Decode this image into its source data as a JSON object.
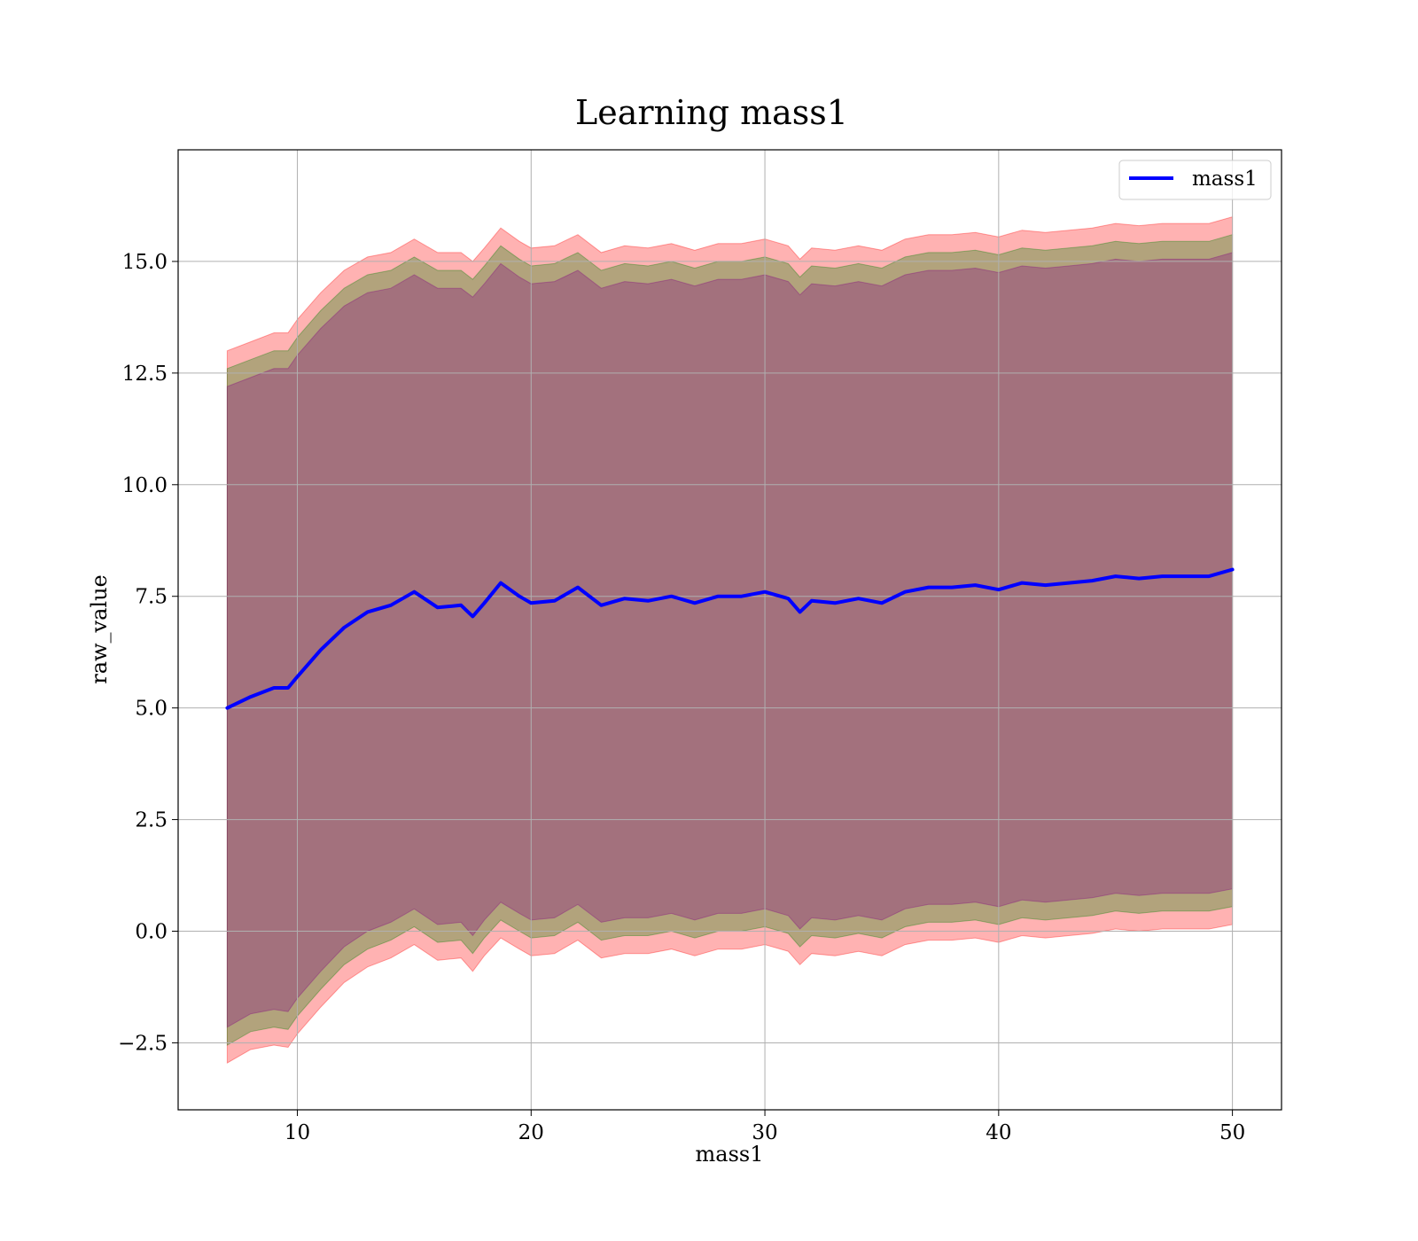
{
  "chart_data": {
    "type": "line",
    "title": "Learning mass1",
    "xlabel": "mass1",
    "ylabel": "raw_value",
    "xlim": [
      4.9,
      52.1
    ],
    "ylim": [
      -4.0,
      17.5
    ],
    "grid": true,
    "legend_position": "top-right",
    "xticks": [
      10,
      20,
      30,
      40,
      50
    ],
    "xtick_labels": [
      "10",
      "20",
      "30",
      "40",
      "50"
    ],
    "yticks": [
      -2.5,
      0.0,
      2.5,
      5.0,
      7.5,
      10.0,
      12.5,
      15.0
    ],
    "ytick_labels": [
      "−2.5",
      "0.0",
      "2.5",
      "5.0",
      "7.5",
      "10.0",
      "12.5",
      "15.0"
    ],
    "x": [
      7.0,
      8.0,
      9.0,
      9.6,
      10.0,
      11.0,
      12.0,
      13.0,
      14.0,
      15.0,
      16.0,
      17.0,
      17.5,
      18.0,
      18.7,
      19.5,
      20.0,
      21.0,
      22.0,
      23.0,
      24.0,
      25.0,
      26.0,
      27.0,
      28.0,
      29.0,
      30.0,
      31.0,
      31.5,
      32.0,
      33.0,
      34.0,
      35.0,
      36.0,
      37.0,
      38.0,
      39.0,
      40.0,
      41.0,
      42.0,
      43.0,
      44.0,
      45.0,
      46.0,
      47.0,
      48.0,
      49.0,
      50.0
    ],
    "series": [
      {
        "name": "mass1",
        "color": "#0000ff",
        "values": [
          5.0,
          5.25,
          5.45,
          5.45,
          5.7,
          6.3,
          6.8,
          7.15,
          7.3,
          7.6,
          7.25,
          7.3,
          7.05,
          7.35,
          7.8,
          7.5,
          7.35,
          7.4,
          7.7,
          7.3,
          7.45,
          7.4,
          7.5,
          7.35,
          7.5,
          7.5,
          7.6,
          7.45,
          7.15,
          7.4,
          7.35,
          7.45,
          7.35,
          7.6,
          7.7,
          7.7,
          7.75,
          7.65,
          7.8,
          7.75,
          7.8,
          7.85,
          7.95,
          7.9,
          7.95,
          7.95,
          7.95,
          8.1
        ]
      }
    ],
    "bands": [
      {
        "color": "#ff0000",
        "opacity": 0.3,
        "lower": [
          -2.95,
          -2.65,
          -2.55,
          -2.6,
          -2.3,
          -1.7,
          -1.15,
          -0.8,
          -0.6,
          -0.3,
          -0.65,
          -0.6,
          -0.9,
          -0.55,
          -0.15,
          -0.4,
          -0.55,
          -0.5,
          -0.2,
          -0.6,
          -0.5,
          -0.5,
          -0.4,
          -0.55,
          -0.4,
          -0.4,
          -0.3,
          -0.45,
          -0.75,
          -0.5,
          -0.55,
          -0.45,
          -0.55,
          -0.3,
          -0.2,
          -0.2,
          -0.15,
          -0.25,
          -0.1,
          -0.15,
          -0.1,
          -0.05,
          0.05,
          0.0,
          0.05,
          0.05,
          0.05,
          0.15
        ],
        "upper": [
          13.0,
          13.2,
          13.4,
          13.4,
          13.7,
          14.3,
          14.8,
          15.1,
          15.2,
          15.5,
          15.2,
          15.2,
          15.0,
          15.3,
          15.75,
          15.45,
          15.3,
          15.35,
          15.6,
          15.2,
          15.35,
          15.3,
          15.4,
          15.25,
          15.4,
          15.4,
          15.5,
          15.35,
          15.05,
          15.3,
          15.25,
          15.35,
          15.25,
          15.5,
          15.6,
          15.6,
          15.65,
          15.55,
          15.7,
          15.65,
          15.7,
          15.75,
          15.85,
          15.8,
          15.85,
          15.85,
          15.85,
          16.0
        ]
      },
      {
        "color": "#008000",
        "opacity": 0.3,
        "lower": [
          -2.55,
          -2.25,
          -2.15,
          -2.2,
          -1.9,
          -1.3,
          -0.75,
          -0.4,
          -0.2,
          0.1,
          -0.25,
          -0.2,
          -0.5,
          -0.15,
          0.25,
          0.0,
          -0.15,
          -0.1,
          0.2,
          -0.2,
          -0.1,
          -0.1,
          0.0,
          -0.15,
          0.0,
          0.0,
          0.1,
          -0.05,
          -0.35,
          -0.1,
          -0.15,
          -0.05,
          -0.15,
          0.1,
          0.2,
          0.2,
          0.25,
          0.15,
          0.3,
          0.25,
          0.3,
          0.35,
          0.45,
          0.4,
          0.45,
          0.45,
          0.45,
          0.55
        ],
        "upper": [
          12.6,
          12.8,
          13.0,
          13.0,
          13.3,
          13.9,
          14.4,
          14.7,
          14.8,
          15.1,
          14.8,
          14.8,
          14.6,
          14.9,
          15.35,
          15.05,
          14.9,
          14.95,
          15.2,
          14.8,
          14.95,
          14.9,
          15.0,
          14.85,
          15.0,
          15.0,
          15.1,
          14.95,
          14.65,
          14.9,
          14.85,
          14.95,
          14.85,
          15.1,
          15.2,
          15.2,
          15.25,
          15.15,
          15.3,
          15.25,
          15.3,
          15.35,
          15.45,
          15.4,
          15.45,
          15.45,
          15.45,
          15.6
        ]
      },
      {
        "color": "#800080",
        "opacity": 0.3,
        "lower": [
          -2.15,
          -1.85,
          -1.75,
          -1.8,
          -1.5,
          -0.9,
          -0.35,
          0.0,
          0.2,
          0.5,
          0.15,
          0.2,
          -0.1,
          0.25,
          0.65,
          0.4,
          0.25,
          0.3,
          0.6,
          0.2,
          0.3,
          0.3,
          0.4,
          0.25,
          0.4,
          0.4,
          0.5,
          0.35,
          0.05,
          0.3,
          0.25,
          0.35,
          0.25,
          0.5,
          0.6,
          0.6,
          0.65,
          0.55,
          0.7,
          0.65,
          0.7,
          0.75,
          0.85,
          0.8,
          0.85,
          0.85,
          0.85,
          0.95
        ],
        "upper": [
          12.2,
          12.4,
          12.6,
          12.6,
          12.9,
          13.5,
          14.0,
          14.3,
          14.4,
          14.7,
          14.4,
          14.4,
          14.2,
          14.5,
          14.95,
          14.65,
          14.5,
          14.55,
          14.8,
          14.4,
          14.55,
          14.5,
          14.6,
          14.45,
          14.6,
          14.6,
          14.7,
          14.55,
          14.25,
          14.5,
          14.45,
          14.55,
          14.45,
          14.7,
          14.8,
          14.8,
          14.85,
          14.75,
          14.9,
          14.85,
          14.9,
          14.95,
          15.05,
          15.0,
          15.05,
          15.05,
          15.05,
          15.2
        ]
      }
    ]
  }
}
